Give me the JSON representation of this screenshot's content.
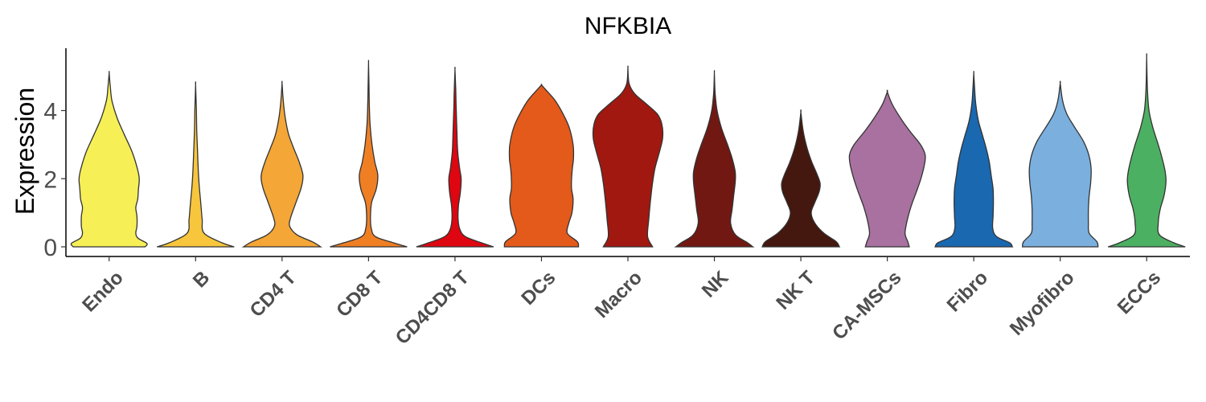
{
  "chart_data": {
    "type": "violin",
    "title": "NFKBIA",
    "xlabel": "",
    "ylabel": "Expression",
    "ylim": [
      -0.25,
      5.75
    ],
    "yticks": [
      0,
      2,
      4
    ],
    "grid": false,
    "legend": "none",
    "categories": [
      "Endo",
      "B",
      "CD4 T",
      "CD8 T",
      "CD4CD8 T",
      "DCs",
      "Macro",
      "NK",
      "NK T",
      "CA-MSCs",
      "Fibro",
      "Myofibro",
      "ECCs"
    ],
    "colors": [
      "#F7EF56",
      "#F8C63D",
      "#F4A636",
      "#F07F24",
      "#DE0610",
      "#E45A1A",
      "#A11810",
      "#711812",
      "#44170F",
      "#A871A0",
      "#1A68B0",
      "#7AAFDE",
      "#4CB062"
    ],
    "max_values": [
      5.1,
      4.75,
      4.8,
      5.4,
      5.2,
      4.75,
      5.25,
      5.1,
      3.95,
      4.55,
      5.1,
      4.8,
      5.55
    ],
    "density_profiles": [
      [
        [
          0,
          0.93
        ],
        [
          0.1,
          0.98
        ],
        [
          0.25,
          0.75
        ],
        [
          0.4,
          0.69
        ],
        [
          0.6,
          0.72
        ],
        [
          0.9,
          0.72
        ],
        [
          1.15,
          0.69
        ],
        [
          1.4,
          0.74
        ],
        [
          1.7,
          0.76
        ],
        [
          2.0,
          0.78
        ],
        [
          2.3,
          0.73
        ],
        [
          2.8,
          0.59
        ],
        [
          3.3,
          0.39
        ],
        [
          3.8,
          0.2
        ],
        [
          4.3,
          0.07
        ],
        [
          4.7,
          0.03
        ],
        [
          5.1,
          0
        ]
      ],
      [
        [
          0,
          1.0
        ],
        [
          0.12,
          0.68
        ],
        [
          0.4,
          0.22
        ],
        [
          0.8,
          0.17
        ],
        [
          1.2,
          0.14
        ],
        [
          1.7,
          0.1
        ],
        [
          2.2,
          0.07
        ],
        [
          2.8,
          0.05
        ],
        [
          3.4,
          0.03
        ],
        [
          4.0,
          0.02
        ],
        [
          4.75,
          0
        ]
      ],
      [
        [
          0,
          1.0
        ],
        [
          0.15,
          0.78
        ],
        [
          0.35,
          0.39
        ],
        [
          0.6,
          0.2
        ],
        [
          0.85,
          0.22
        ],
        [
          1.3,
          0.36
        ],
        [
          1.75,
          0.5
        ],
        [
          2.1,
          0.54
        ],
        [
          2.5,
          0.44
        ],
        [
          2.9,
          0.3
        ],
        [
          3.3,
          0.17
        ],
        [
          3.8,
          0.08
        ],
        [
          4.3,
          0.03
        ],
        [
          4.8,
          0
        ]
      ],
      [
        [
          0,
          1.0
        ],
        [
          0.12,
          0.64
        ],
        [
          0.3,
          0.18
        ],
        [
          0.55,
          0.07
        ],
        [
          0.9,
          0.05
        ],
        [
          1.3,
          0.08
        ],
        [
          1.7,
          0.2
        ],
        [
          2.1,
          0.24
        ],
        [
          2.5,
          0.16
        ],
        [
          3.0,
          0.09
        ],
        [
          3.6,
          0.04
        ],
        [
          4.2,
          0.02
        ],
        [
          4.8,
          0.01
        ],
        [
          5.4,
          0
        ]
      ],
      [
        [
          0,
          1.0
        ],
        [
          0.12,
          0.68
        ],
        [
          0.3,
          0.27
        ],
        [
          0.5,
          0.13
        ],
        [
          0.8,
          0.08
        ],
        [
          1.2,
          0.09
        ],
        [
          1.6,
          0.14
        ],
        [
          2.0,
          0.16
        ],
        [
          2.3,
          0.12
        ],
        [
          2.8,
          0.07
        ],
        [
          3.4,
          0.05
        ],
        [
          4.1,
          0.03
        ],
        [
          4.6,
          0.02
        ],
        [
          5.2,
          0
        ]
      ],
      [
        [
          0,
          0.96
        ],
        [
          0.15,
          0.93
        ],
        [
          0.4,
          0.67
        ],
        [
          0.7,
          0.71
        ],
        [
          1.0,
          0.79
        ],
        [
          1.4,
          0.82
        ],
        [
          1.7,
          0.78
        ],
        [
          2.0,
          0.78
        ],
        [
          2.3,
          0.8
        ],
        [
          2.6,
          0.83
        ],
        [
          3.0,
          0.82
        ],
        [
          3.5,
          0.72
        ],
        [
          3.9,
          0.56
        ],
        [
          4.3,
          0.35
        ],
        [
          4.6,
          0.12
        ],
        [
          4.75,
          0
        ]
      ],
      [
        [
          0,
          0.64
        ],
        [
          0.3,
          0.51
        ],
        [
          0.8,
          0.54
        ],
        [
          1.3,
          0.58
        ],
        [
          1.8,
          0.63
        ],
        [
          2.3,
          0.7
        ],
        [
          2.8,
          0.82
        ],
        [
          3.2,
          0.9
        ],
        [
          3.6,
          0.88
        ],
        [
          3.9,
          0.76
        ],
        [
          4.2,
          0.47
        ],
        [
          4.5,
          0.17
        ],
        [
          4.8,
          0.03
        ],
        [
          5.25,
          0
        ]
      ],
      [
        [
          0,
          1.0
        ],
        [
          0.12,
          0.86
        ],
        [
          0.35,
          0.55
        ],
        [
          0.7,
          0.42
        ],
        [
          1.1,
          0.46
        ],
        [
          1.5,
          0.5
        ],
        [
          1.9,
          0.54
        ],
        [
          2.2,
          0.54
        ],
        [
          2.6,
          0.46
        ],
        [
          3.0,
          0.34
        ],
        [
          3.5,
          0.18
        ],
        [
          4.0,
          0.07
        ],
        [
          4.5,
          0.02
        ],
        [
          5.1,
          0
        ]
      ],
      [
        [
          0,
          1.0
        ],
        [
          0.15,
          0.92
        ],
        [
          0.4,
          0.6
        ],
        [
          0.7,
          0.36
        ],
        [
          1.0,
          0.27
        ],
        [
          1.3,
          0.36
        ],
        [
          1.6,
          0.47
        ],
        [
          1.85,
          0.5
        ],
        [
          2.1,
          0.43
        ],
        [
          2.5,
          0.28
        ],
        [
          2.9,
          0.16
        ],
        [
          3.4,
          0.06
        ],
        [
          3.95,
          0
        ]
      ],
      [
        [
          0,
          0.57
        ],
        [
          0.15,
          0.53
        ],
        [
          0.4,
          0.46
        ],
        [
          0.8,
          0.52
        ],
        [
          1.2,
          0.62
        ],
        [
          1.6,
          0.75
        ],
        [
          2.0,
          0.87
        ],
        [
          2.4,
          0.96
        ],
        [
          2.7,
          0.98
        ],
        [
          3.0,
          0.86
        ],
        [
          3.4,
          0.58
        ],
        [
          3.8,
          0.33
        ],
        [
          4.2,
          0.12
        ],
        [
          4.55,
          0
        ]
      ],
      [
        [
          0,
          1.0
        ],
        [
          0.12,
          0.93
        ],
        [
          0.3,
          0.59
        ],
        [
          0.55,
          0.49
        ],
        [
          0.9,
          0.5
        ],
        [
          1.3,
          0.51
        ],
        [
          1.7,
          0.5
        ],
        [
          2.1,
          0.45
        ],
        [
          2.5,
          0.4
        ],
        [
          2.9,
          0.32
        ],
        [
          3.3,
          0.22
        ],
        [
          3.7,
          0.12
        ],
        [
          4.2,
          0.05
        ],
        [
          4.7,
          0.02
        ],
        [
          5.1,
          0
        ]
      ],
      [
        [
          0,
          0.98
        ],
        [
          0.15,
          0.95
        ],
        [
          0.4,
          0.75
        ],
        [
          0.7,
          0.73
        ],
        [
          1.1,
          0.73
        ],
        [
          1.5,
          0.75
        ],
        [
          1.9,
          0.79
        ],
        [
          2.3,
          0.8
        ],
        [
          2.7,
          0.74
        ],
        [
          3.1,
          0.6
        ],
        [
          3.5,
          0.38
        ],
        [
          3.9,
          0.17
        ],
        [
          4.3,
          0.06
        ],
        [
          4.8,
          0
        ]
      ],
      [
        [
          0,
          1.0
        ],
        [
          0.12,
          0.7
        ],
        [
          0.35,
          0.33
        ],
        [
          0.7,
          0.3
        ],
        [
          1.1,
          0.35
        ],
        [
          1.5,
          0.45
        ],
        [
          1.9,
          0.5
        ],
        [
          2.2,
          0.48
        ],
        [
          2.6,
          0.4
        ],
        [
          3.0,
          0.3
        ],
        [
          3.5,
          0.16
        ],
        [
          4.0,
          0.06
        ],
        [
          4.6,
          0.02
        ],
        [
          5.55,
          0
        ]
      ]
    ]
  }
}
